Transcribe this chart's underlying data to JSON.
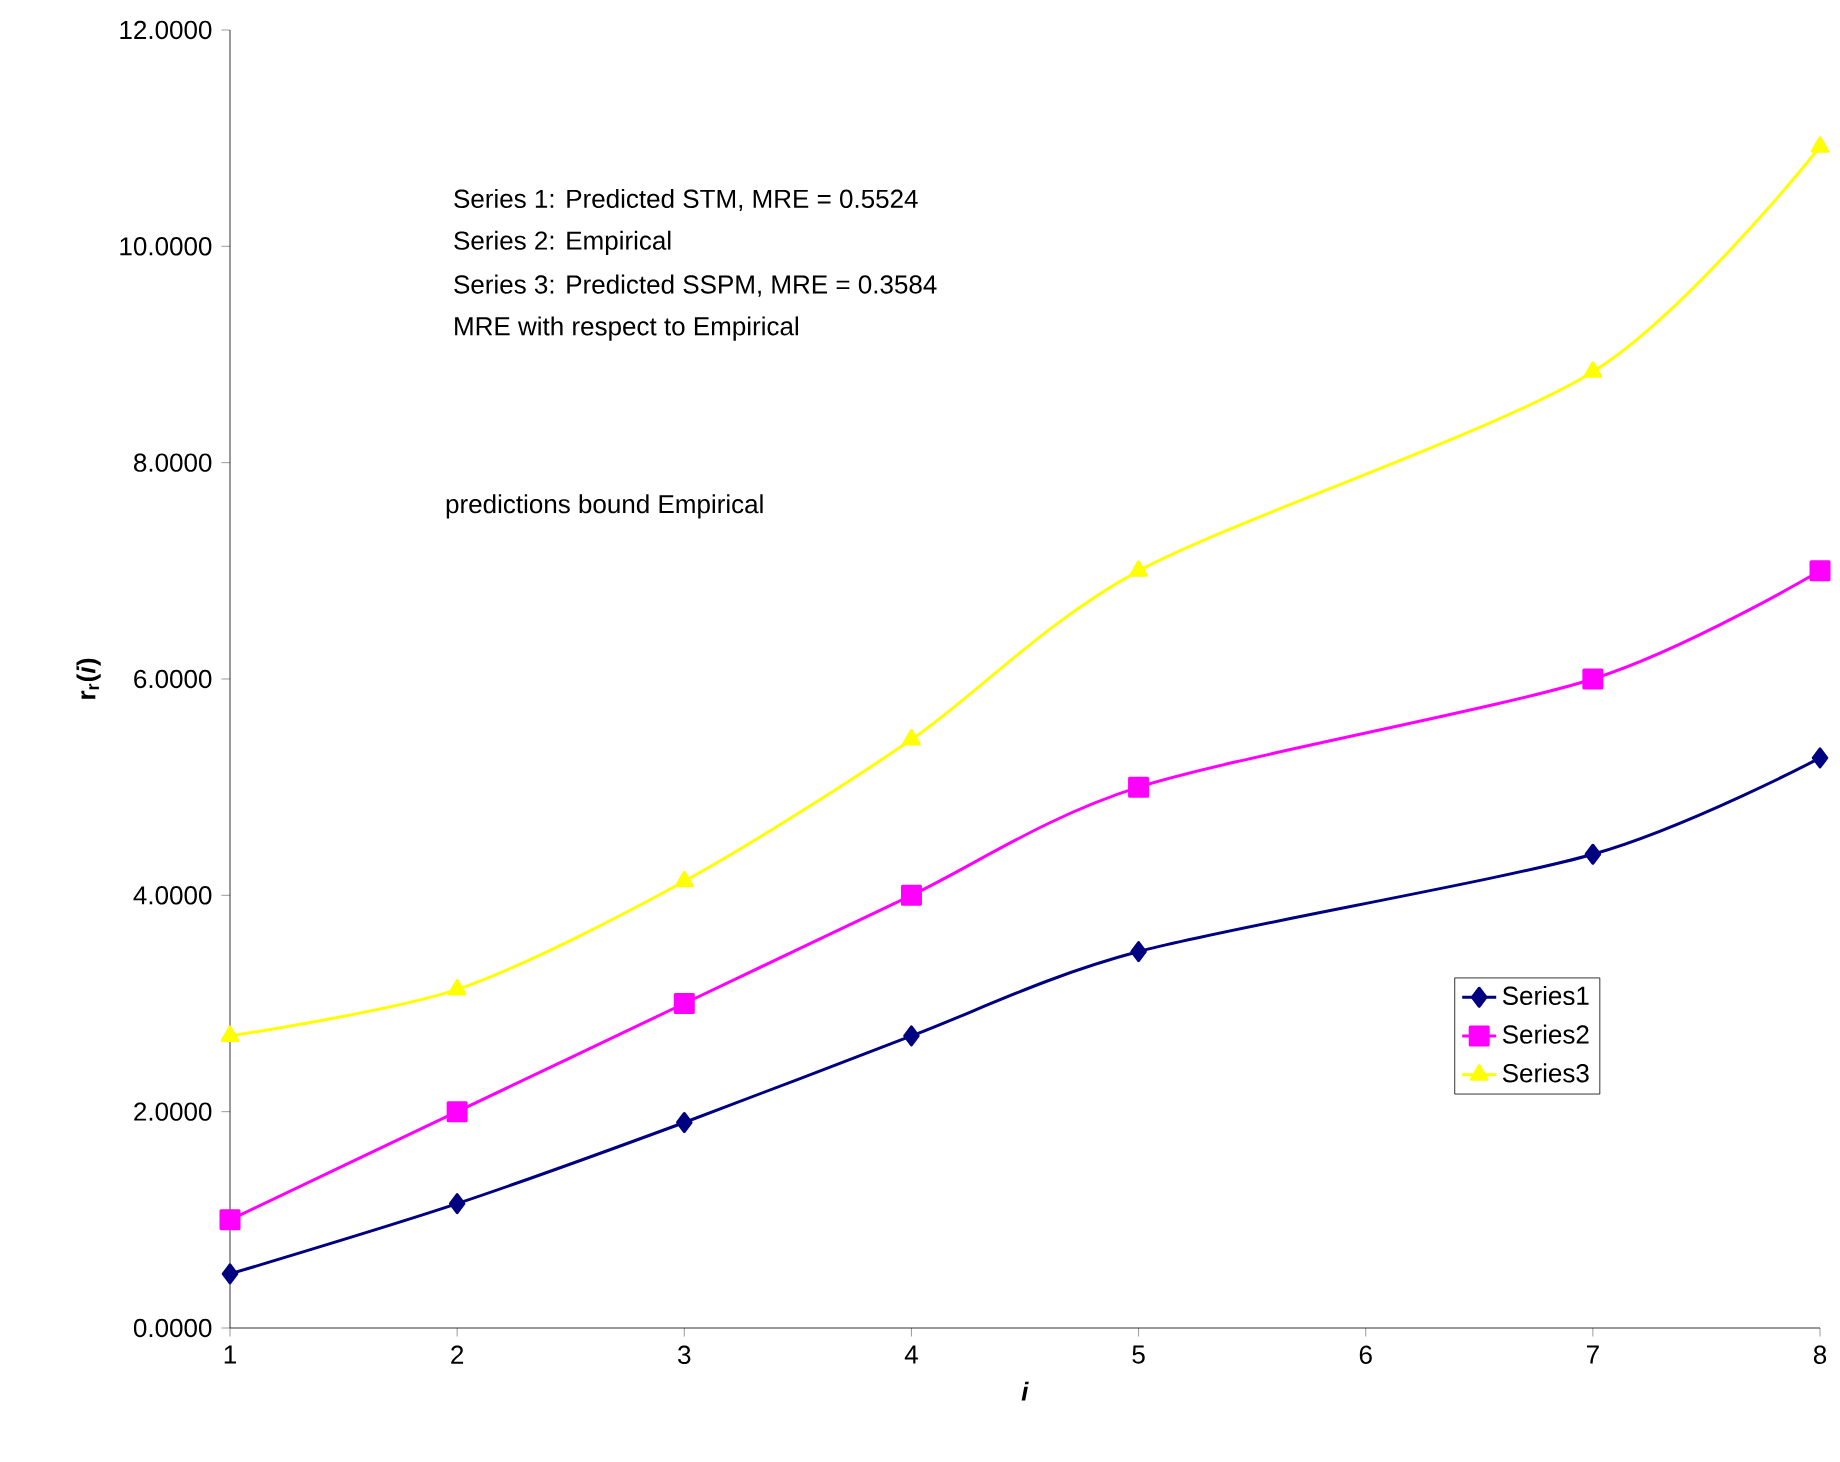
{
  "chart_data": {
    "type": "line",
    "xlabel": "*i*",
    "ylabel": "r$_{r}$(*i*)",
    "x": [
      1,
      2,
      3,
      4,
      5,
      7,
      8
    ],
    "series": [
      {
        "name": "Series1",
        "color": "#000080",
        "marker": "diamond",
        "values": [
          0.5,
          1.15,
          1.9,
          2.7,
          3.48,
          4.38,
          5.27
        ]
      },
      {
        "name": "Series2",
        "color": "#ff00ff",
        "marker": "square",
        "values": [
          1,
          2,
          3,
          4,
          5,
          6,
          7
        ]
      },
      {
        "name": "Series3",
        "color": "#ffff00",
        "marker": "triangle",
        "values": [
          2.7,
          3.13,
          4.13,
          5.44,
          7.0,
          8.84,
          10.92
        ]
      }
    ],
    "xlim": [
      1,
      8
    ],
    "xticks": [
      1,
      2,
      3,
      4,
      5,
      6,
      7,
      8
    ],
    "ylim": [
      0,
      12
    ],
    "yticks": [
      {
        "value": 0,
        "label": "0.0000"
      },
      {
        "value": 2,
        "label": "2.0000"
      },
      {
        "value": 4,
        "label": "4.0000"
      },
      {
        "value": 6,
        "label": "6.0000"
      },
      {
        "value": 8,
        "label": "8.0000"
      },
      {
        "value": 10,
        "label": "10.0000"
      },
      {
        "value": 12,
        "label": "12.0000"
      }
    ],
    "annotations": [
      "Series 1: Predicted STM, MRE = 0.5524",
      "Series 2: Empirical",
      "Series 3: Predicted SSPM, MRE = 0.3584",
      "MRE with respect to Empirical",
      "predictions bound Empirical"
    ],
    "legend": "right",
    "grid": false,
    "line_style": "solid"
  }
}
